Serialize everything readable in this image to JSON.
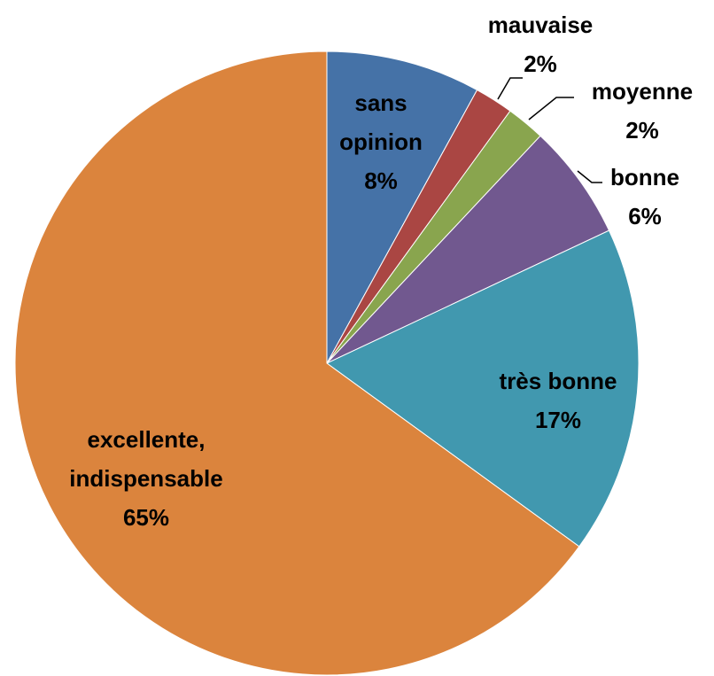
{
  "chart_data": {
    "type": "pie",
    "categories": [
      "sans opinion",
      "mauvaise",
      "moyenne",
      "bonne",
      "très bonne",
      "excellente, indispensable"
    ],
    "values": [
      8,
      2,
      2,
      6,
      17,
      65
    ],
    "value_labels": [
      "8%",
      "2%",
      "2%",
      "6%",
      "17%",
      "65%"
    ],
    "colors": [
      "#4572a7",
      "#aa4643",
      "#89a54e",
      "#71588f",
      "#4198af",
      "#db843d"
    ]
  }
}
